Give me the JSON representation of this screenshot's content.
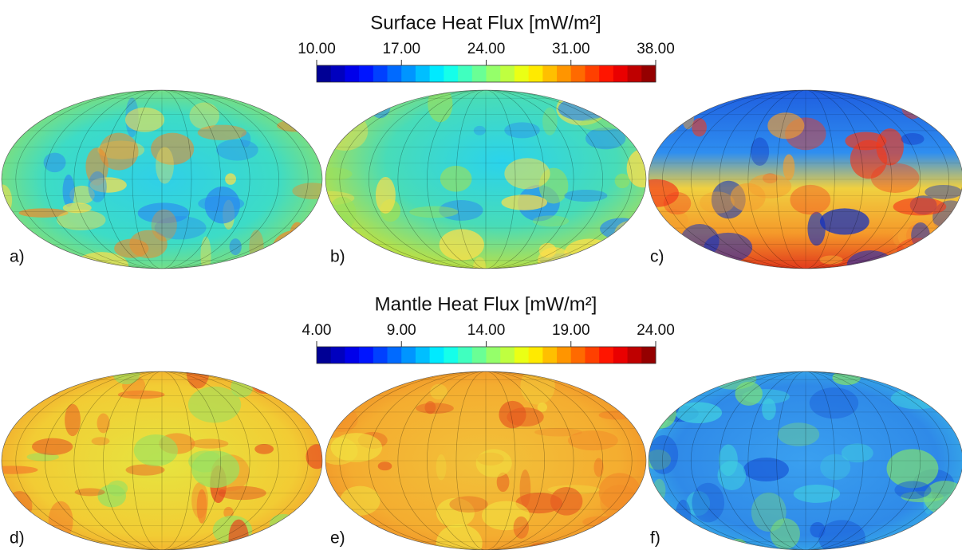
{
  "rows": [
    {
      "title": "Surface Heat Flux [mW/m²]",
      "colorbar": {
        "ticks": [
          {
            "value": 10,
            "label": "10.00"
          },
          {
            "value": 17,
            "label": "17.00"
          },
          {
            "value": 24,
            "label": "24.00"
          },
          {
            "value": 31,
            "label": "31.00"
          },
          {
            "value": 38,
            "label": "38.00"
          }
        ]
      },
      "panels": [
        "a)",
        "b)",
        "c)"
      ]
    },
    {
      "title": "Mantle Heat Flux [mW/m²]",
      "colorbar": {
        "ticks": [
          {
            "value": 4,
            "label": "4.00"
          },
          {
            "value": 9,
            "label": "9.00"
          },
          {
            "value": 14,
            "label": "14.00"
          },
          {
            "value": 19,
            "label": "19.00"
          },
          {
            "value": 24,
            "label": "24.00"
          }
        ]
      },
      "panels": [
        "d)",
        "e)",
        "f)"
      ]
    }
  ]
}
